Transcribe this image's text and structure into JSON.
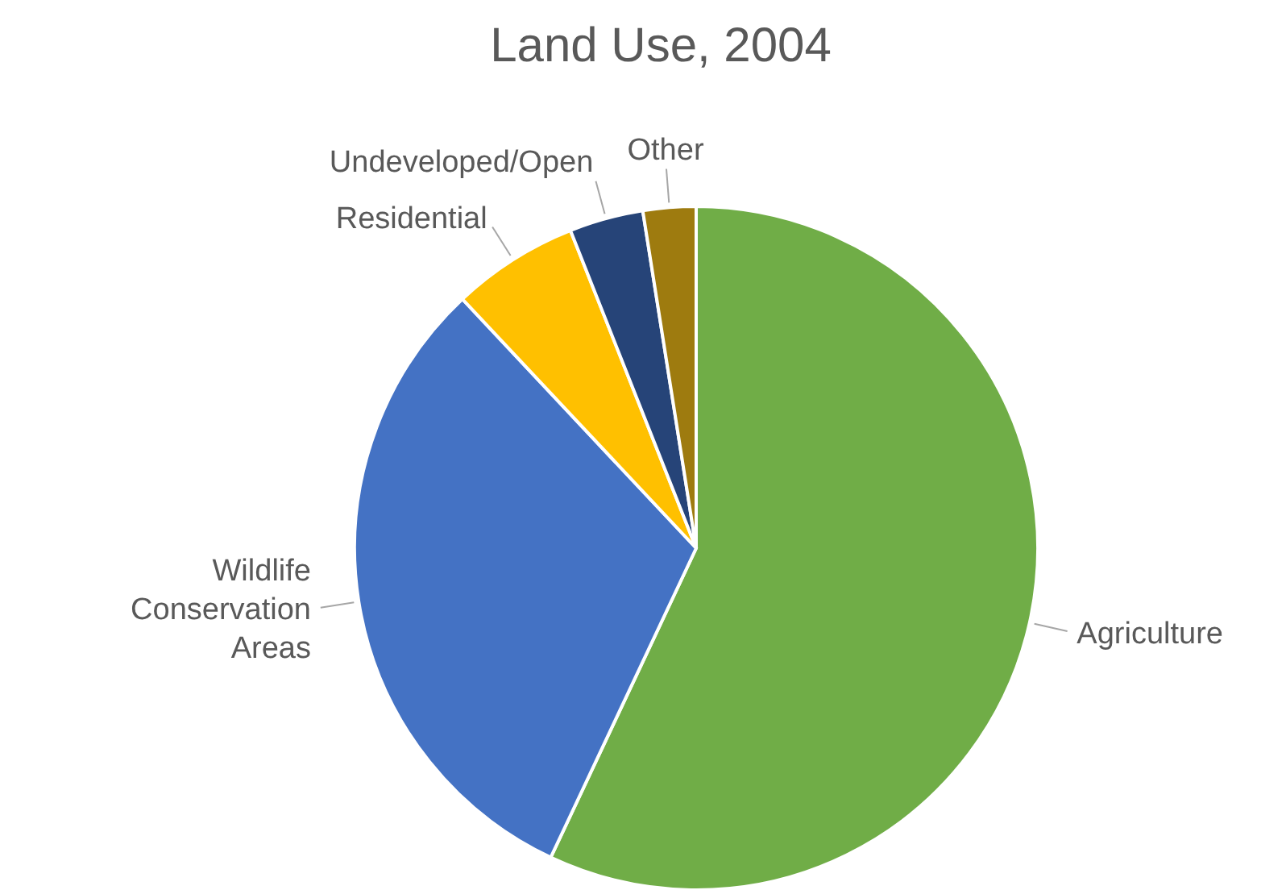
{
  "chart_data": {
    "type": "pie",
    "title": "Land Use, 2004",
    "categories": [
      "Agriculture",
      "Wildlife Conservation Areas",
      "Residential",
      "Undeveloped/Open",
      "Other"
    ],
    "values": [
      57,
      31,
      6,
      3.5,
      2.5
    ],
    "colors": [
      "#70ad47",
      "#4472c4",
      "#ffc000",
      "#264478",
      "#9e7b0f"
    ]
  }
}
